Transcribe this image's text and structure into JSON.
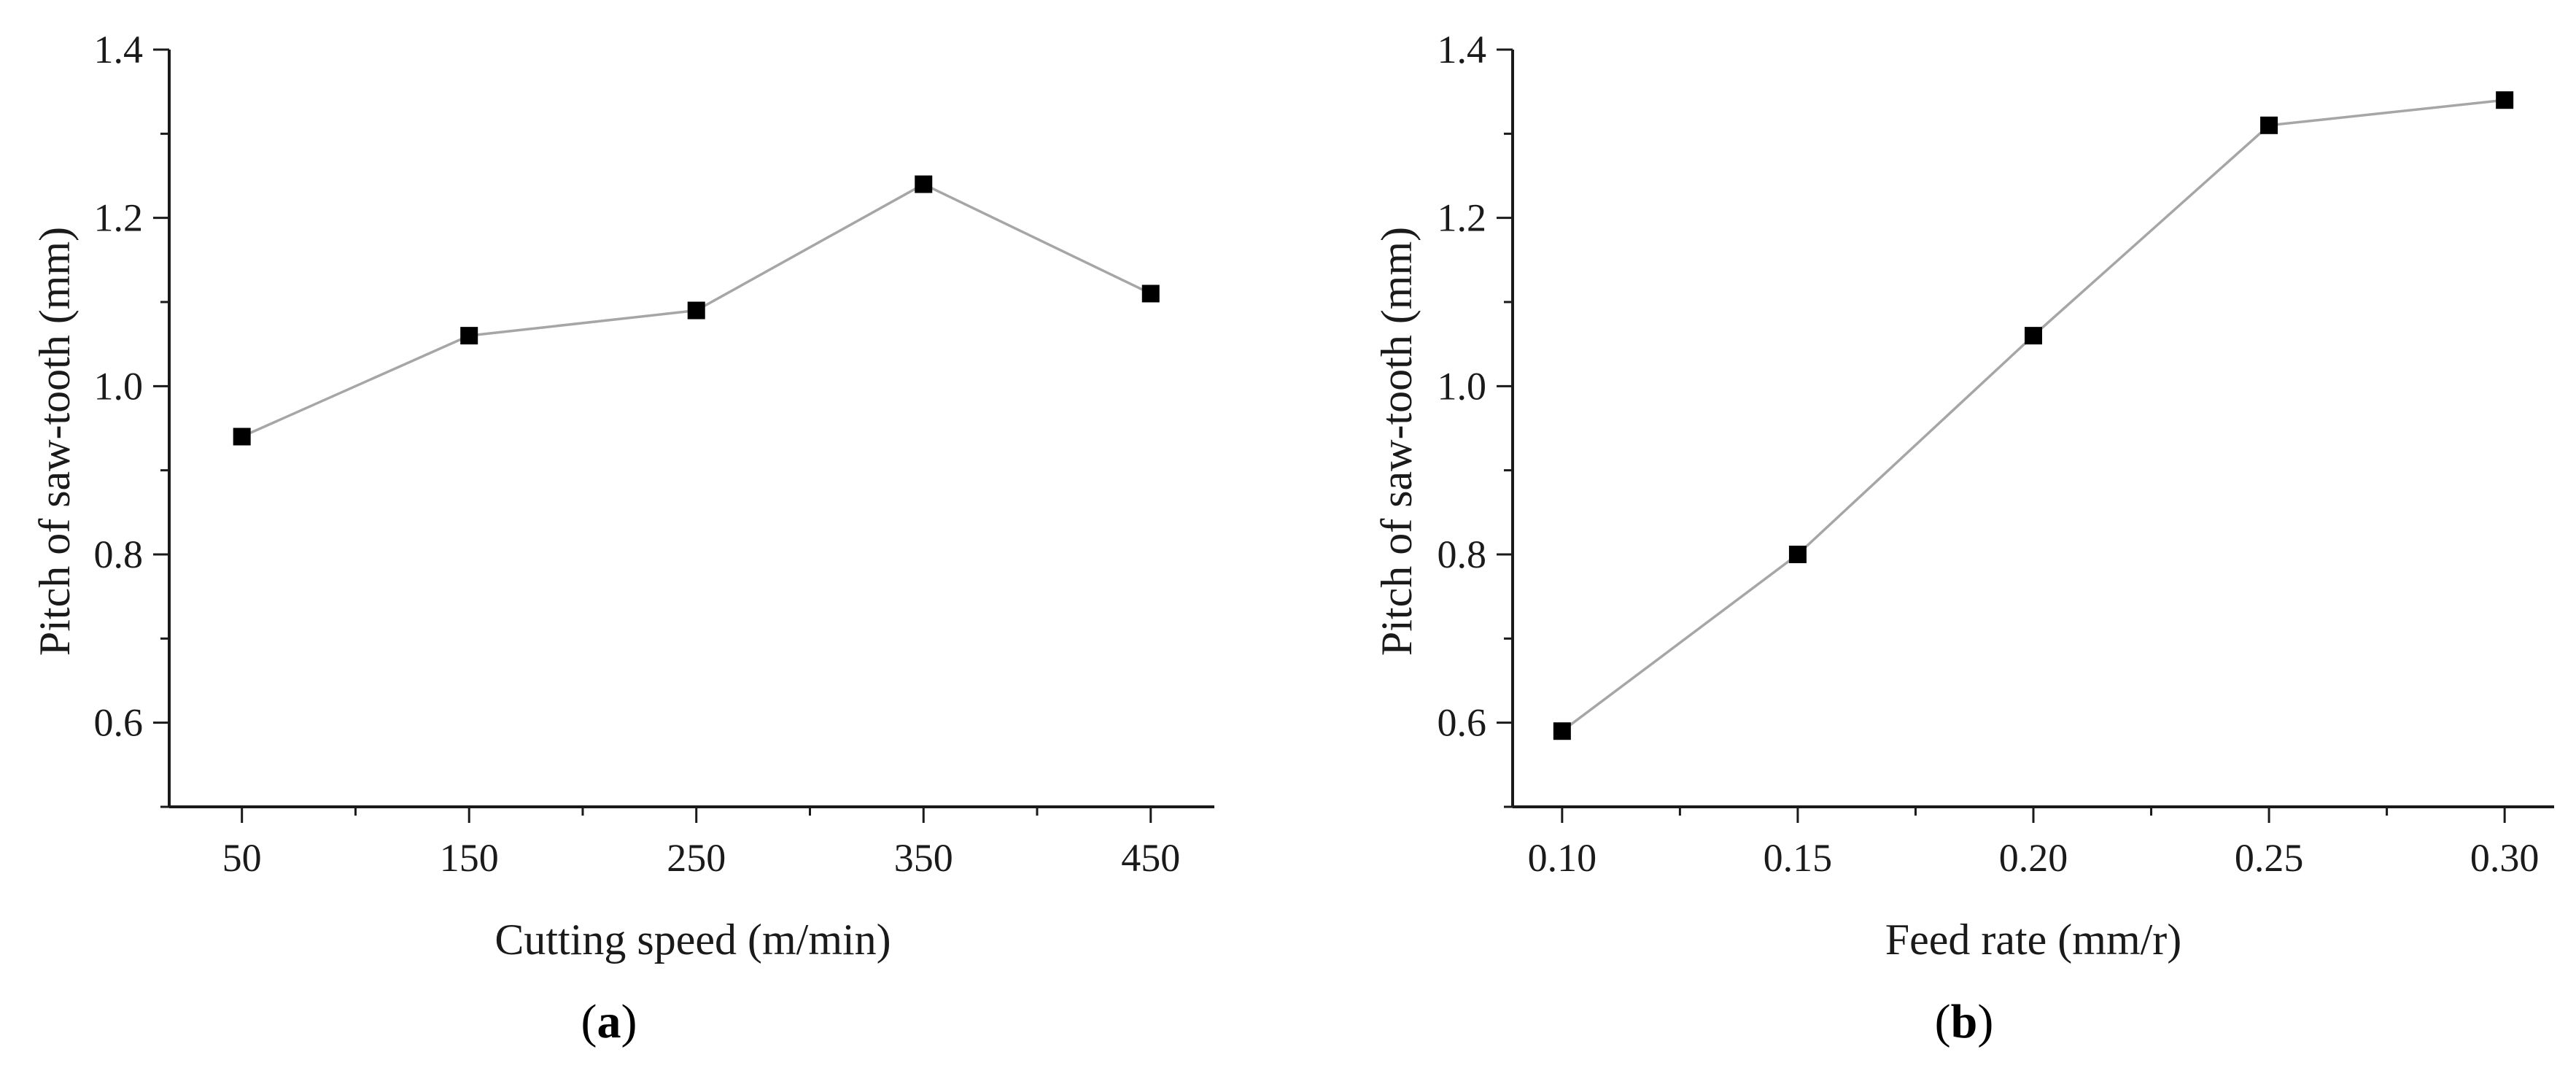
{
  "colors": {
    "axis": "#1a1a1a",
    "line": "#a6a6a6",
    "marker": "#000000"
  },
  "chart_data": [
    {
      "type": "line",
      "caption_open": "(",
      "caption_letter": "a",
      "caption_close": ")",
      "title": "",
      "xlabel": "Cutting speed (m/min)",
      "ylabel": "Pitch of saw-tooth (mm)",
      "x": [
        50,
        150,
        250,
        350,
        450
      ],
      "series": [
        {
          "name": "Pitch of saw-tooth",
          "values": [
            0.94,
            1.06,
            1.09,
            1.24,
            1.11
          ]
        }
      ],
      "xlim": [
        18,
        478
      ],
      "ylim": [
        0.5,
        1.4
      ],
      "xticks": [
        50,
        150,
        250,
        350,
        450
      ],
      "xtick_labels": [
        "50",
        "150",
        "250",
        "350",
        "450"
      ],
      "xminor": [
        100,
        200,
        300,
        400
      ],
      "yticks": [
        0.6,
        0.8,
        1.0,
        1.2,
        1.4
      ],
      "ytick_labels": [
        "0.6",
        "0.8",
        "1.0",
        "1.2",
        "1.4"
      ],
      "yminor": [
        0.5,
        0.7,
        0.9,
        1.1,
        1.3
      ],
      "grid": false,
      "marker": "square"
    },
    {
      "type": "line",
      "caption_open": "(",
      "caption_letter": "b",
      "caption_close": ")",
      "title": "",
      "xlabel": "Feed rate (mm/r)",
      "ylabel": "Pitch of saw-tooth (mm)",
      "x": [
        0.1,
        0.15,
        0.2,
        0.25,
        0.3
      ],
      "series": [
        {
          "name": "Pitch of saw-tooth",
          "values": [
            0.59,
            0.8,
            1.06,
            1.31,
            1.34
          ]
        }
      ],
      "xlim": [
        0.0895,
        0.3105
      ],
      "ylim": [
        0.5,
        1.4
      ],
      "xticks": [
        0.1,
        0.15,
        0.2,
        0.25,
        0.3
      ],
      "xtick_labels": [
        "0.10",
        "0.15",
        "0.20",
        "0.25",
        "0.30"
      ],
      "xminor": [
        0.125,
        0.175,
        0.225,
        0.275
      ],
      "yticks": [
        0.6,
        0.8,
        1.0,
        1.2,
        1.4
      ],
      "ytick_labels": [
        "0.6",
        "0.8",
        "1.0",
        "1.2",
        "1.4"
      ],
      "yminor": [
        0.5,
        0.7,
        0.9,
        1.1,
        1.3
      ],
      "grid": false,
      "marker": "square"
    }
  ]
}
